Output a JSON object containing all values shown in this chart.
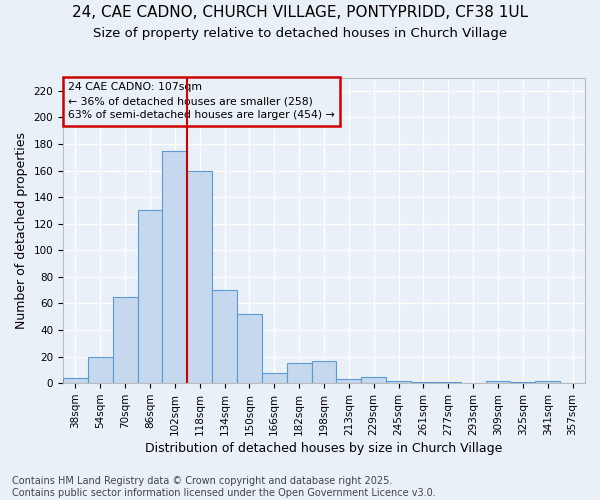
{
  "title": "24, CAE CADNO, CHURCH VILLAGE, PONTYPRIDD, CF38 1UL",
  "subtitle": "Size of property relative to detached houses in Church Village",
  "xlabel": "Distribution of detached houses by size in Church Village",
  "ylabel": "Number of detached properties",
  "categories": [
    "38sqm",
    "54sqm",
    "70sqm",
    "86sqm",
    "102sqm",
    "118sqm",
    "134sqm",
    "150sqm",
    "166sqm",
    "182sqm",
    "198sqm",
    "213sqm",
    "229sqm",
    "245sqm",
    "261sqm",
    "277sqm",
    "293sqm",
    "309sqm",
    "325sqm",
    "341sqm",
    "357sqm"
  ],
  "values": [
    4,
    20,
    65,
    130,
    175,
    160,
    70,
    52,
    8,
    15,
    17,
    3,
    5,
    2,
    1,
    1,
    0,
    2,
    1,
    2,
    0
  ],
  "bar_color": "#c5d8ed",
  "bar_edge_color": "#5b9bd5",
  "vline_x_index": 4.5,
  "annotation_line1": "24 CAE CADNO: 107sqm",
  "annotation_line2": "← 36% of detached houses are smaller (258)",
  "annotation_line3": "63% of semi-detached houses are larger (454) →",
  "box_color": "#cc0000",
  "footer_line1": "Contains HM Land Registry data © Crown copyright and database right 2025.",
  "footer_line2": "Contains public sector information licensed under the Open Government Licence v3.0.",
  "ylim": [
    0,
    230
  ],
  "yticks": [
    0,
    20,
    40,
    60,
    80,
    100,
    120,
    140,
    160,
    180,
    200,
    220
  ],
  "background_color": "#eaf0f8",
  "grid_color": "#ffffff",
  "title_fontsize": 11,
  "subtitle_fontsize": 9.5,
  "axis_label_fontsize": 9,
  "tick_fontsize": 7.5,
  "footer_fontsize": 7
}
